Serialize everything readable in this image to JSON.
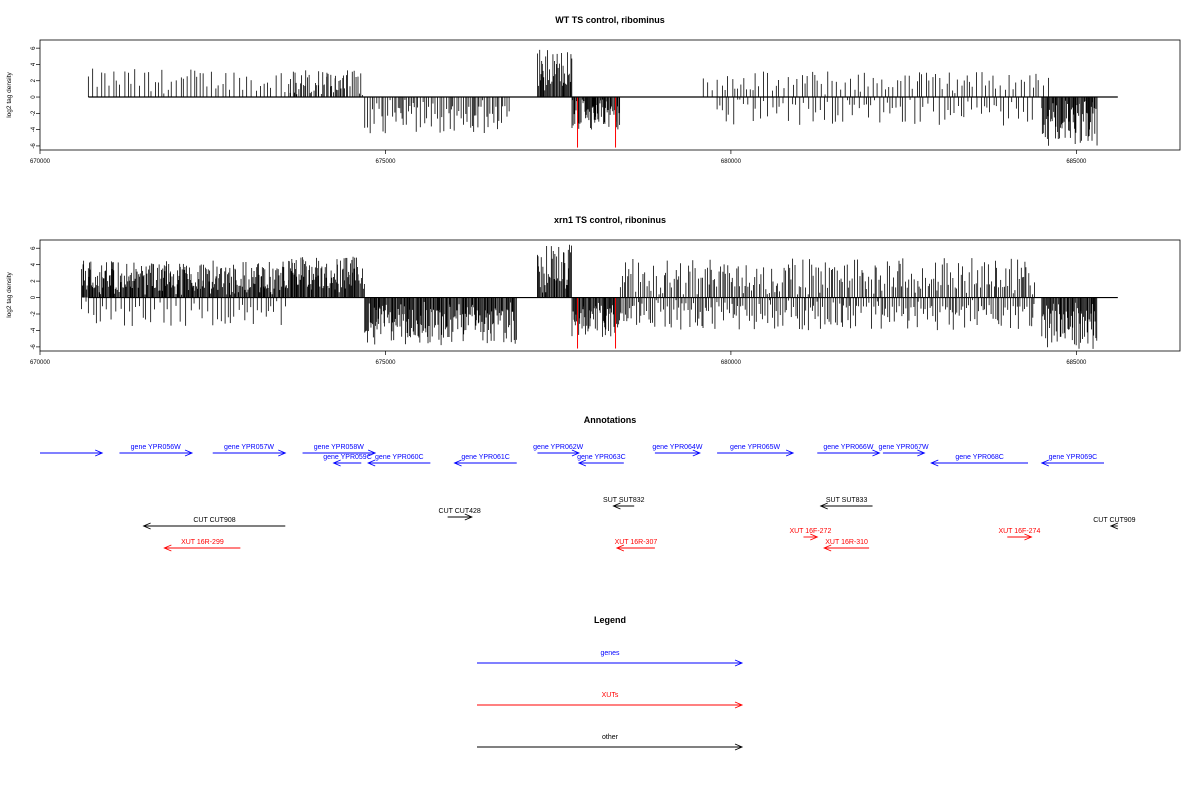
{
  "chart_data": [
    {
      "type": "bar",
      "title": "WT TS control, ribominus",
      "xlabel": "",
      "ylabel": "log2 tag density",
      "xlim": [
        670000,
        686500
      ],
      "ylim": [
        -6.5,
        7
      ],
      "xticks": [
        "670000",
        "675000",
        "680000",
        "685000"
      ],
      "yticks": [
        "6",
        "4",
        "2",
        "0",
        "-2",
        "-4",
        "-6"
      ],
      "highlight_color": "#ff0000",
      "highlight_bars": [
        {
          "x": 677780,
          "y": -6.2
        },
        {
          "x": 678330,
          "y": -6.2
        }
      ],
      "density_regions": [
        {
          "start": 670700,
          "end": 674400,
          "sign": "positive",
          "max": 3.5,
          "density": "sparse"
        },
        {
          "start": 673600,
          "end": 674700,
          "sign": "positive",
          "max": 3.3,
          "density": "medium"
        },
        {
          "start": 674700,
          "end": 676800,
          "sign": "negative",
          "min": -4.5,
          "density": "medium"
        },
        {
          "start": 677200,
          "end": 677700,
          "sign": "positive",
          "max": 5.8,
          "density": "dense"
        },
        {
          "start": 677700,
          "end": 678400,
          "sign": "negative",
          "min": -4.2,
          "density": "dense"
        },
        {
          "start": 679600,
          "end": 684600,
          "sign": "positive",
          "max": 3.2,
          "density": "sparse"
        },
        {
          "start": 679800,
          "end": 684400,
          "sign": "negative",
          "min": -3.5,
          "density": "sparse"
        },
        {
          "start": 684500,
          "end": 685300,
          "sign": "negative",
          "min": -6.0,
          "density": "dense"
        }
      ]
    },
    {
      "type": "bar",
      "title": "xrn1 TS control, riboninus",
      "xlabel": "",
      "ylabel": "log2 tag density",
      "xlim": [
        670000,
        686500
      ],
      "ylim": [
        -6.5,
        7
      ],
      "xticks": [
        "670000",
        "675000",
        "680000",
        "685000"
      ],
      "yticks": [
        "6",
        "4",
        "2",
        "0",
        "-2",
        "-4",
        "-6"
      ],
      "highlight_color": "#ff0000",
      "highlight_bars": [
        {
          "x": 677780,
          "y": -6.2
        },
        {
          "x": 678330,
          "y": -6.2
        }
      ],
      "density_regions": [
        {
          "start": 670600,
          "end": 673600,
          "sign": "positive",
          "max": 4.5,
          "density": "dense"
        },
        {
          "start": 670600,
          "end": 673600,
          "sign": "negative",
          "min": -3.5,
          "density": "sparse"
        },
        {
          "start": 673600,
          "end": 674700,
          "sign": "positive",
          "max": 5.0,
          "density": "dense"
        },
        {
          "start": 674700,
          "end": 676900,
          "sign": "negative",
          "min": -5.8,
          "density": "dense"
        },
        {
          "start": 677200,
          "end": 677700,
          "sign": "positive",
          "max": 6.5,
          "density": "dense"
        },
        {
          "start": 677700,
          "end": 678400,
          "sign": "negative",
          "min": -4.8,
          "density": "dense"
        },
        {
          "start": 678400,
          "end": 684400,
          "sign": "positive",
          "max": 4.8,
          "density": "medium"
        },
        {
          "start": 678400,
          "end": 684400,
          "sign": "negative",
          "min": -4.0,
          "density": "medium"
        },
        {
          "start": 684500,
          "end": 685300,
          "sign": "negative",
          "min": -6.3,
          "density": "dense"
        }
      ]
    }
  ],
  "annotations": {
    "title": "Annotations",
    "colors": {
      "gene": "#0000ff",
      "xut": "#ff0000",
      "other": "#000000"
    },
    "features": [
      {
        "label": "",
        "kind": "gene",
        "start": 670000,
        "end": 670900,
        "dir": "right",
        "row": 0
      },
      {
        "label": "gene YPR056W",
        "kind": "gene",
        "start": 671150,
        "end": 672200,
        "dir": "right",
        "row": 0
      },
      {
        "label": "gene YPR057W",
        "kind": "gene",
        "start": 672500,
        "end": 673550,
        "dir": "right",
        "row": 0
      },
      {
        "label": "gene YPR058W",
        "kind": "gene",
        "start": 673800,
        "end": 674850,
        "dir": "right",
        "row": 0
      },
      {
        "label": "gene YPR059C",
        "kind": "gene",
        "start": 674250,
        "end": 674650,
        "dir": "left",
        "row": 1
      },
      {
        "label": "gene YPR060C",
        "kind": "gene",
        "start": 674750,
        "end": 675650,
        "dir": "left",
        "row": 1
      },
      {
        "label": "gene YPR061C",
        "kind": "gene",
        "start": 676000,
        "end": 676900,
        "dir": "left",
        "row": 1
      },
      {
        "label": "gene YPR062W",
        "kind": "gene",
        "start": 677200,
        "end": 677800,
        "dir": "right",
        "row": 0
      },
      {
        "label": "gene YPR063C",
        "kind": "gene",
        "start": 677800,
        "end": 678450,
        "dir": "left",
        "row": 1
      },
      {
        "label": "gene YPR064W",
        "kind": "gene",
        "start": 678900,
        "end": 679550,
        "dir": "right",
        "row": 0
      },
      {
        "label": "gene YPR065W",
        "kind": "gene",
        "start": 679800,
        "end": 680900,
        "dir": "right",
        "row": 0
      },
      {
        "label": "gene YPR066W",
        "kind": "gene",
        "start": 681250,
        "end": 682150,
        "dir": "right",
        "row": 0
      },
      {
        "label": "gene YPR067W",
        "kind": "gene",
        "start": 682200,
        "end": 682800,
        "dir": "right",
        "row": 0
      },
      {
        "label": "gene YPR068C",
        "kind": "gene",
        "start": 682900,
        "end": 684300,
        "dir": "left",
        "row": 1
      },
      {
        "label": "gene YPR069C",
        "kind": "gene",
        "start": 684500,
        "end": 685400,
        "dir": "left",
        "row": 1
      },
      {
        "label": "SUT SUT832",
        "kind": "other",
        "start": 678300,
        "end": 678600,
        "dir": "left",
        "row": 2
      },
      {
        "label": "SUT SUT833",
        "kind": "other",
        "start": 681300,
        "end": 682050,
        "dir": "left",
        "row": 2
      },
      {
        "label": "CUT CUT428",
        "kind": "other",
        "start": 675900,
        "end": 676250,
        "dir": "right",
        "row": 3
      },
      {
        "label": "CUT CUT908",
        "kind": "other",
        "start": 671500,
        "end": 673550,
        "dir": "left",
        "row": 4
      },
      {
        "label": "CUT CUT909",
        "kind": "other",
        "start": 685500,
        "end": 685600,
        "dir": "left",
        "row": 4
      },
      {
        "label": "XUT 16F-272",
        "kind": "xut",
        "start": 681050,
        "end": 681250,
        "dir": "right",
        "row": 5
      },
      {
        "label": "XUT 16F-274",
        "kind": "xut",
        "start": 684000,
        "end": 684350,
        "dir": "right",
        "row": 5
      },
      {
        "label": "XUT 16R-299",
        "kind": "xut",
        "start": 671800,
        "end": 672900,
        "dir": "left",
        "row": 6
      },
      {
        "label": "XUT 16R-307",
        "kind": "xut",
        "start": 678350,
        "end": 678900,
        "dir": "left",
        "row": 6
      },
      {
        "label": "XUT 16R-310",
        "kind": "xut",
        "start": 681350,
        "end": 682000,
        "dir": "left",
        "row": 6
      }
    ]
  },
  "legend": {
    "title": "Legend",
    "items": [
      {
        "label": "genes",
        "color": "#0000ff"
      },
      {
        "label": "XUTs",
        "color": "#ff0000"
      },
      {
        "label": "other",
        "color": "#000000"
      }
    ]
  }
}
